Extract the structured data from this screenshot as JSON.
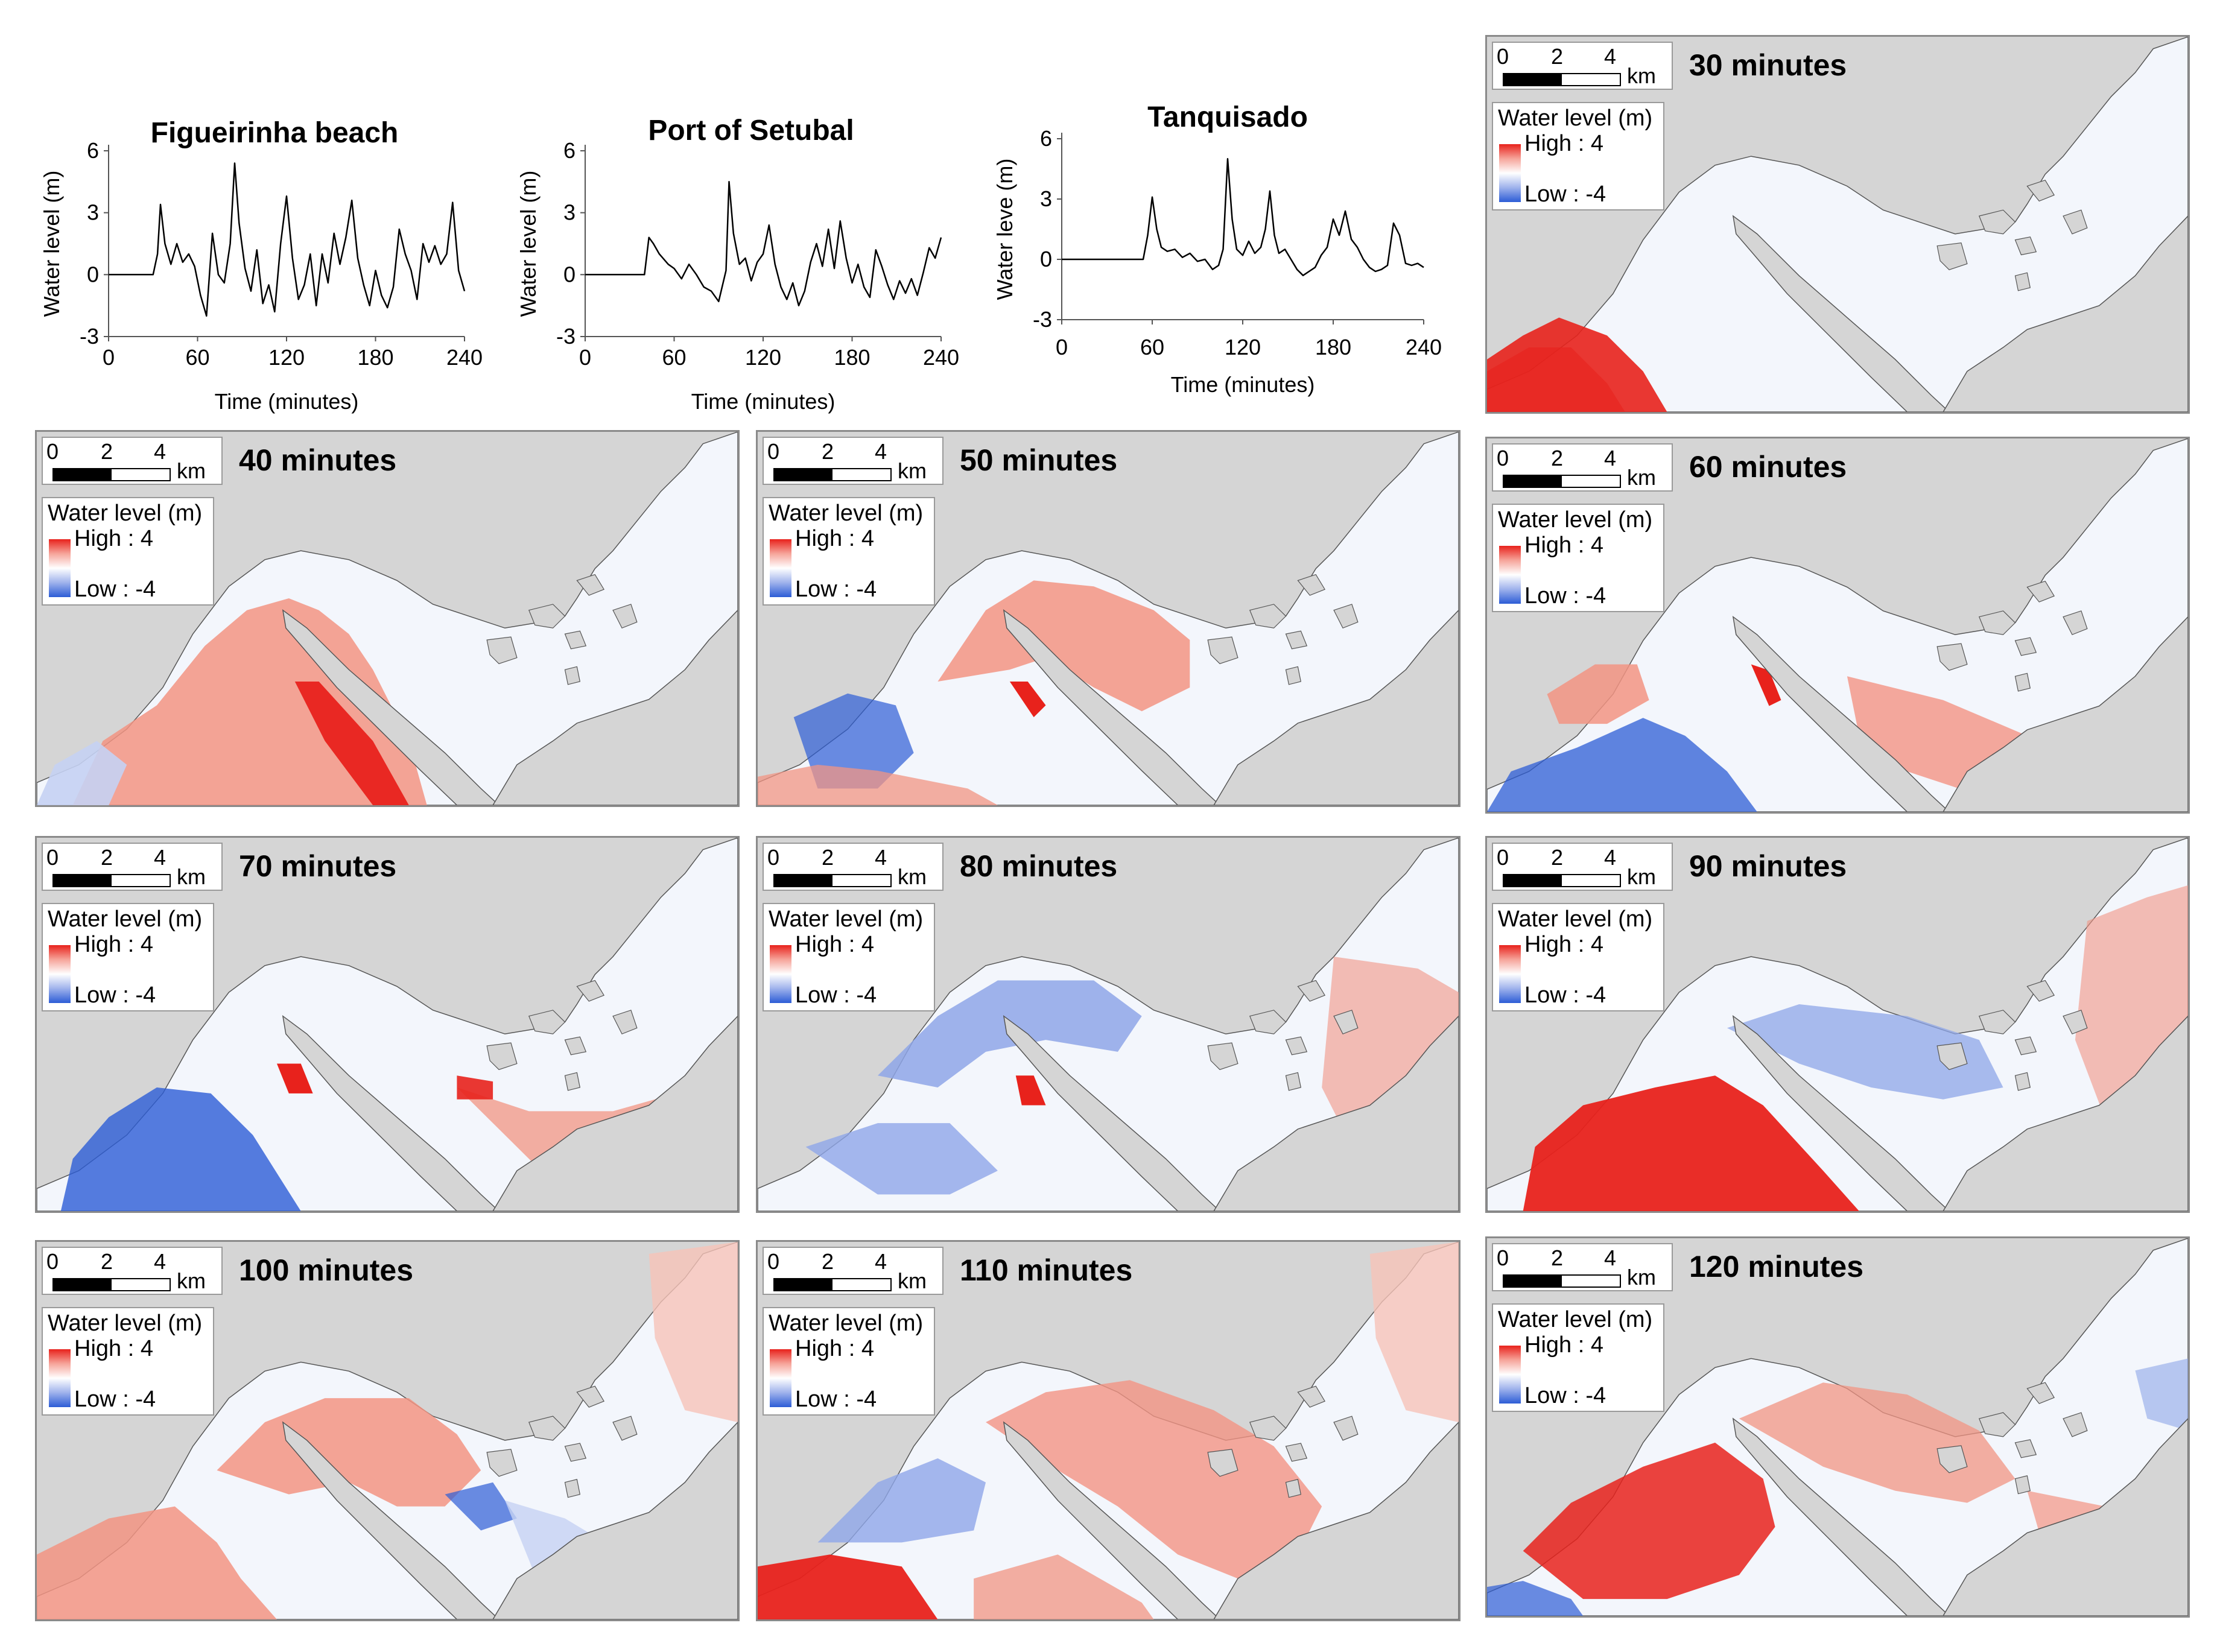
{
  "colors": {
    "land": "#d5d5d5",
    "water_neutral": "#f3f6fc",
    "high": "#e8221c",
    "low": "#2c5cd6",
    "line": "#000000"
  },
  "chart_data": [
    {
      "type": "line",
      "title": "Figueirinha beach",
      "xlabel": "Time (minutes)",
      "ylabel": "Water level (m)",
      "xlim": [
        0,
        240
      ],
      "ylim": [
        -3,
        6
      ],
      "xticks": [
        "0",
        "60",
        "120",
        "180",
        "240"
      ],
      "yticks": [
        "6",
        "3",
        "0",
        "-3"
      ],
      "x": [
        0,
        30,
        33,
        35,
        38,
        42,
        46,
        50,
        54,
        58,
        62,
        66,
        70,
        74,
        78,
        82,
        85,
        88,
        92,
        96,
        100,
        104,
        108,
        112,
        116,
        120,
        124,
        128,
        132,
        136,
        140,
        144,
        148,
        152,
        156,
        160,
        164,
        168,
        172,
        176,
        180,
        184,
        188,
        192,
        196,
        200,
        204,
        208,
        212,
        216,
        220,
        224,
        228,
        232,
        236,
        240
      ],
      "y": [
        0,
        0,
        1,
        3.4,
        1.5,
        0.5,
        1.5,
        0.6,
        1.0,
        0.4,
        -1.0,
        -2.0,
        2.0,
        0.0,
        -0.4,
        1.5,
        5.4,
        2.5,
        0.3,
        -0.8,
        1.2,
        -1.4,
        -0.5,
        -1.8,
        1.5,
        3.8,
        0.8,
        -1.2,
        -0.5,
        1.0,
        -1.5,
        1.0,
        -0.4,
        2.0,
        0.5,
        1.8,
        3.6,
        0.8,
        -0.5,
        -1.5,
        0.2,
        -1.0,
        -1.6,
        -0.6,
        2.2,
        1.0,
        0.2,
        -1.2,
        1.5,
        0.6,
        1.4,
        0.5,
        1.0,
        3.5,
        0.2,
        -0.8
      ]
    },
    {
      "type": "line",
      "title": "Port of Setubal",
      "xlabel": "Time (minutes)",
      "ylabel": "Water level (m)",
      "xlim": [
        0,
        240
      ],
      "ylim": [
        -3,
        6
      ],
      "xticks": [
        "0",
        "60",
        "120",
        "180",
        "240"
      ],
      "yticks": [
        "6",
        "3",
        "0",
        "-3"
      ],
      "x": [
        0,
        40,
        43,
        46,
        50,
        56,
        60,
        65,
        70,
        75,
        80,
        85,
        90,
        95,
        97,
        100,
        104,
        108,
        112,
        116,
        120,
        124,
        128,
        132,
        136,
        140,
        144,
        148,
        152,
        156,
        160,
        164,
        168,
        172,
        176,
        180,
        184,
        188,
        192,
        196,
        200,
        204,
        208,
        212,
        216,
        220,
        224,
        228,
        232,
        236,
        240
      ],
      "y": [
        0,
        0,
        1.8,
        1.5,
        1.0,
        0.5,
        0.3,
        -0.2,
        0.5,
        0,
        -0.6,
        -0.8,
        -1.3,
        0.2,
        4.5,
        2.0,
        0.5,
        0.8,
        -0.3,
        0.6,
        1.0,
        2.4,
        0.5,
        -0.6,
        -1.2,
        -0.4,
        -1.5,
        -0.8,
        0.6,
        1.5,
        0.4,
        2.2,
        0.3,
        2.6,
        0.8,
        -0.4,
        0.5,
        -0.6,
        -1.1,
        1.2,
        0.4,
        -0.5,
        -1.2,
        -0.3,
        -0.9,
        -0.2,
        -1.0,
        0.1,
        1.3,
        0.8,
        1.8
      ]
    },
    {
      "type": "line",
      "title": "Tanquisado",
      "xlabel": "Time (minutes)",
      "ylabel": "Water leve (m)",
      "xlim": [
        0,
        240
      ],
      "ylim": [
        -3,
        6
      ],
      "xticks": [
        "0",
        "60",
        "120",
        "180",
        "240"
      ],
      "yticks": [
        "6",
        "3",
        "0",
        "-3"
      ],
      "x": [
        0,
        54,
        57,
        60,
        63,
        66,
        70,
        75,
        80,
        85,
        90,
        95,
        100,
        104,
        107,
        110,
        113,
        116,
        120,
        124,
        128,
        132,
        135,
        138,
        141,
        144,
        148,
        152,
        156,
        160,
        164,
        168,
        172,
        176,
        180,
        184,
        188,
        192,
        196,
        200,
        204,
        208,
        212,
        216,
        220,
        224,
        228,
        232,
        236,
        240
      ],
      "y": [
        0,
        0,
        1.2,
        3.1,
        1.5,
        0.6,
        0.4,
        0.5,
        0.1,
        0.3,
        -0.1,
        0,
        -0.5,
        -0.3,
        0.5,
        5.0,
        2.0,
        0.5,
        0.2,
        0.9,
        0.3,
        0.6,
        1.5,
        3.4,
        1.2,
        0.3,
        0.5,
        0,
        -0.5,
        -0.8,
        -0.6,
        -0.4,
        0.2,
        0.6,
        2.0,
        1.2,
        2.4,
        1.0,
        0.6,
        0,
        -0.4,
        -0.6,
        -0.5,
        -0.3,
        1.8,
        1.2,
        -0.2,
        -0.3,
        -0.2,
        -0.4
      ]
    }
  ],
  "map_common": {
    "scale_ticks": [
      "0",
      "2",
      "4"
    ],
    "scale_unit": "km",
    "legend_title": "Water level (m)",
    "legend_high": "High : 4",
    "legend_low": "Low : -4"
  },
  "panels": [
    {
      "title": "30 minutes",
      "pattern": "p30"
    },
    {
      "title": "40 minutes",
      "pattern": "p40"
    },
    {
      "title": "50 minutes",
      "pattern": "p50"
    },
    {
      "title": "60 minutes",
      "pattern": "p60"
    },
    {
      "title": "70 minutes",
      "pattern": "p70"
    },
    {
      "title": "80 minutes",
      "pattern": "p80"
    },
    {
      "title": "90 minutes",
      "pattern": "p90"
    },
    {
      "title": "100 minutes",
      "pattern": "p100"
    },
    {
      "title": "110 minutes",
      "pattern": "p110"
    },
    {
      "title": "120 minutes",
      "pattern": "p120"
    }
  ]
}
